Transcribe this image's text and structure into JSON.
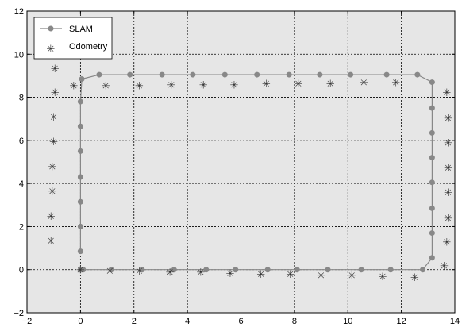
{
  "chart_data": {
    "type": "line",
    "title": "",
    "xlabel": "",
    "ylabel": "",
    "xlim": [
      -2,
      14
    ],
    "ylim": [
      -2,
      12
    ],
    "x_ticks": [
      -2,
      0,
      2,
      4,
      6,
      8,
      10,
      12,
      14
    ],
    "y_ticks": [
      -2,
      0,
      2,
      4,
      6,
      8,
      10,
      12
    ],
    "grid": true,
    "legend_position": "top-left",
    "series": [
      {
        "name": "SLAM",
        "style": "line-dot",
        "color": "#888888",
        "points": [
          [
            0.0,
            0.0
          ],
          [
            0.05,
            0.0
          ],
          [
            0.1,
            0.0
          ],
          [
            1.15,
            0.0
          ],
          [
            2.3,
            0.0
          ],
          [
            3.5,
            0.0
          ],
          [
            4.7,
            0.0
          ],
          [
            5.8,
            0.0
          ],
          [
            7.0,
            0.0
          ],
          [
            8.1,
            0.0
          ],
          [
            9.25,
            0.0
          ],
          [
            10.5,
            0.0
          ],
          [
            11.6,
            0.0
          ],
          [
            12.8,
            0.0
          ],
          [
            13.15,
            0.55
          ],
          [
            13.15,
            1.7
          ],
          [
            13.15,
            2.85
          ],
          [
            13.15,
            4.05
          ],
          [
            13.15,
            5.2
          ],
          [
            13.15,
            6.35
          ],
          [
            13.15,
            7.5
          ],
          [
            13.15,
            8.7
          ],
          [
            12.6,
            9.05
          ],
          [
            11.45,
            9.05
          ],
          [
            10.1,
            9.05
          ],
          [
            8.95,
            9.05
          ],
          [
            7.8,
            9.05
          ],
          [
            6.6,
            9.05
          ],
          [
            5.4,
            9.05
          ],
          [
            4.2,
            9.05
          ],
          [
            3.05,
            9.05
          ],
          [
            1.85,
            9.05
          ],
          [
            0.7,
            9.05
          ],
          [
            0.05,
            8.85
          ],
          [
            0.0,
            7.8
          ],
          [
            0.0,
            6.65
          ],
          [
            0.0,
            5.5
          ],
          [
            0.0,
            4.3
          ],
          [
            0.0,
            3.15
          ],
          [
            0.0,
            2.0
          ],
          [
            0.0,
            0.85
          ]
        ]
      },
      {
        "name": "Odometry",
        "style": "star",
        "color": "#333333",
        "points": [
          [
            -1.1,
            1.35
          ],
          [
            -1.1,
            2.5
          ],
          [
            -1.05,
            3.65
          ],
          [
            -1.05,
            4.8
          ],
          [
            -1.0,
            5.95
          ],
          [
            -1.0,
            7.1
          ],
          [
            -0.95,
            8.25
          ],
          [
            -0.95,
            9.35
          ],
          [
            -0.25,
            8.55
          ],
          [
            0.95,
            8.55
          ],
          [
            2.2,
            8.55
          ],
          [
            3.4,
            8.6
          ],
          [
            4.6,
            8.6
          ],
          [
            5.75,
            8.6
          ],
          [
            6.95,
            8.65
          ],
          [
            8.15,
            8.65
          ],
          [
            9.35,
            8.65
          ],
          [
            10.6,
            8.7
          ],
          [
            11.8,
            8.7
          ],
          [
            13.7,
            8.25
          ],
          [
            13.75,
            7.05
          ],
          [
            13.75,
            5.9
          ],
          [
            13.75,
            4.75
          ],
          [
            13.75,
            3.6
          ],
          [
            13.75,
            2.4
          ],
          [
            13.7,
            1.3
          ],
          [
            13.6,
            0.2
          ],
          [
            12.5,
            -0.35
          ],
          [
            11.3,
            -0.3
          ],
          [
            10.15,
            -0.25
          ],
          [
            9.0,
            -0.25
          ],
          [
            7.85,
            -0.2
          ],
          [
            6.75,
            -0.2
          ],
          [
            5.6,
            -0.15
          ],
          [
            4.5,
            -0.1
          ],
          [
            3.35,
            -0.1
          ],
          [
            2.2,
            -0.05
          ],
          [
            1.1,
            -0.05
          ],
          [
            0.0,
            0.0
          ]
        ]
      }
    ]
  },
  "legend": {
    "items": [
      {
        "label": "SLAM"
      },
      {
        "label": "Odometry"
      }
    ]
  }
}
